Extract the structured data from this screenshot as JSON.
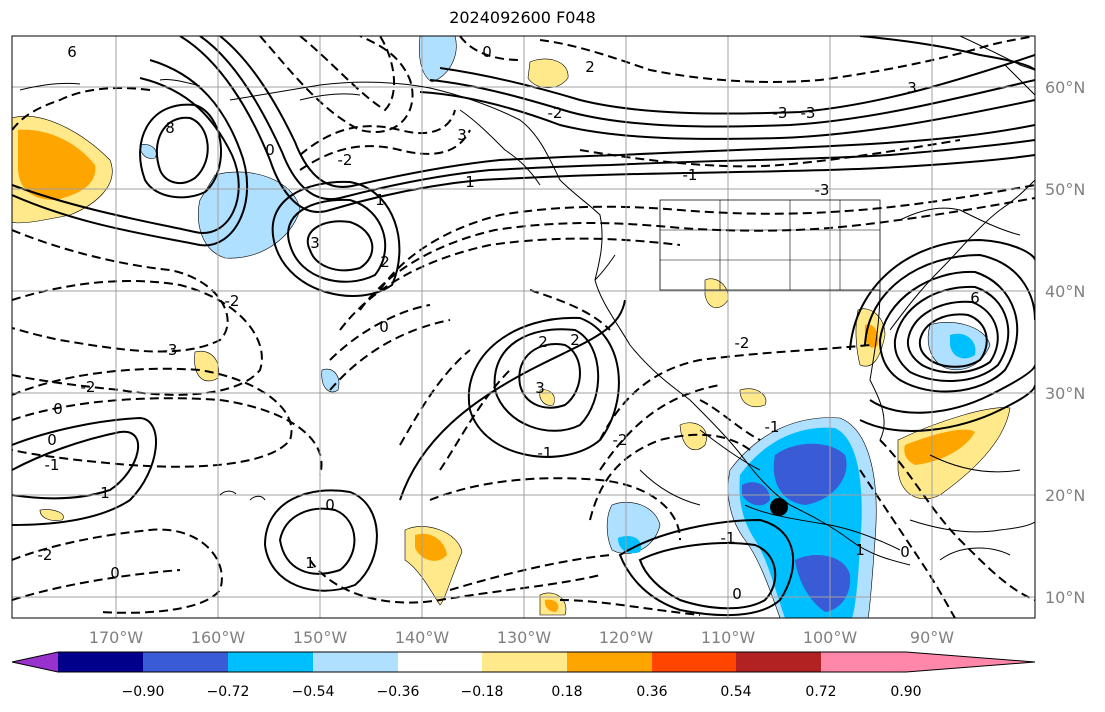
{
  "title": "2024092600 F048",
  "lat_labels": [
    "60°N",
    "50°N",
    "40°N",
    "30°N",
    "20°N",
    "10°N"
  ],
  "lon_labels": [
    "170°W",
    "160°W",
    "150°W",
    "140°W",
    "130°W",
    "120°W",
    "110°W",
    "100°W",
    "90°W"
  ],
  "colorbar": {
    "ticks": [
      "−0.90",
      "−0.72",
      "−0.54",
      "−0.36",
      "−0.18",
      "0.18",
      "0.36",
      "0.54",
      "0.72",
      "0.90"
    ],
    "colors": [
      "#9932cc",
      "#00008b",
      "#3a5bd6",
      "#00bfff",
      "#b0e0ff",
      "#ffffff",
      "#ffe98a",
      "#ffa500",
      "#ff4500",
      "#b22222",
      "#ff88aa"
    ]
  },
  "contour_labels": [
    {
      "text": "6"
    },
    {
      "text": "0"
    },
    {
      "text": "2"
    },
    {
      "text": "-2"
    },
    {
      "text": "8"
    },
    {
      "text": "0"
    },
    {
      "text": "3"
    },
    {
      "text": "-2"
    },
    {
      "text": "1"
    },
    {
      "text": "3"
    },
    {
      "text": "2"
    },
    {
      "text": "-3"
    },
    {
      "text": "-1"
    },
    {
      "text": "1"
    },
    {
      "text": "0"
    },
    {
      "text": "2"
    },
    {
      "text": "-2"
    },
    {
      "text": "-3"
    },
    {
      "text": "-2"
    },
    {
      "text": "0"
    },
    {
      "text": "0"
    },
    {
      "text": "-1"
    },
    {
      "text": "1"
    },
    {
      "text": "0"
    },
    {
      "text": "1"
    },
    {
      "text": "-2"
    },
    {
      "text": "0"
    },
    {
      "text": "3"
    },
    {
      "text": "2"
    },
    {
      "text": "-1"
    },
    {
      "text": "0"
    },
    {
      "text": "-2"
    },
    {
      "text": "-2"
    },
    {
      "text": "-1"
    },
    {
      "text": "1"
    },
    {
      "text": "0"
    },
    {
      "text": "6"
    },
    {
      "text": "3"
    },
    {
      "text": "-3"
    },
    {
      "text": "-3"
    },
    {
      "text": "-1"
    }
  ]
}
